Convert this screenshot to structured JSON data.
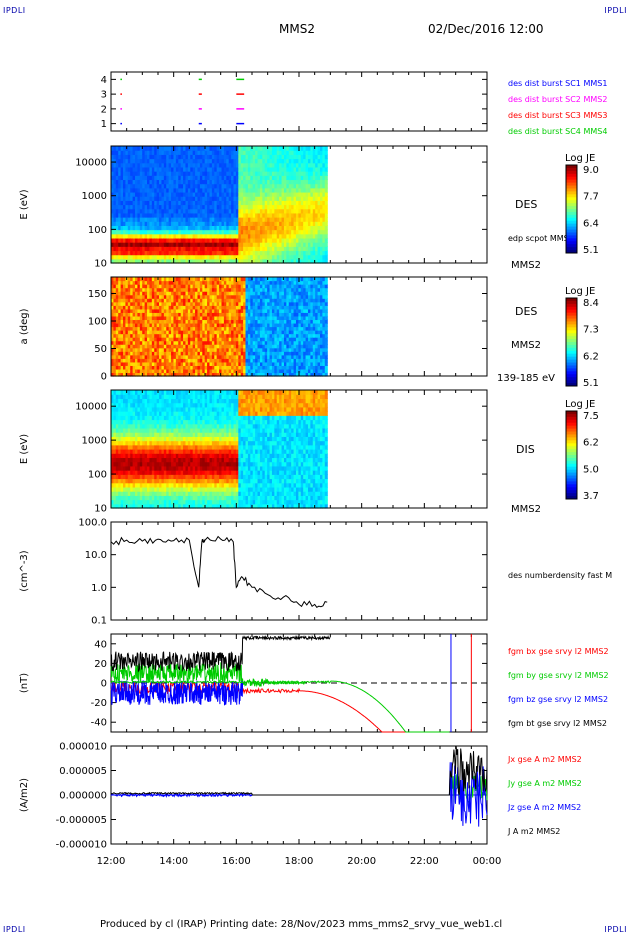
{
  "header": {
    "left_corner": "IPDLI",
    "right_corner": "IPDLI",
    "title": "MMS2",
    "date": "02/Dec/2016 12:00"
  },
  "footer": {
    "produced": "Produced by cl (IRAP)   Printing date: 28/Nov/2023   mms_mms2_srvy_vue_web1.cl",
    "left_corner": "IPDLI",
    "right_corner": "IPDLI"
  },
  "chart_data": [
    {
      "type": "scatter",
      "panel": "burst-availability",
      "ylim": [
        0.5,
        4.5
      ],
      "yticks": [
        "1",
        "2",
        "3",
        "4"
      ],
      "series": [
        {
          "name": "des dist burst SC1 MMS1",
          "color": "#0000ff",
          "level": 1
        },
        {
          "name": "des dist burst SC2 MMS2",
          "color": "#ff00ff",
          "level": 2
        },
        {
          "name": "des dist burst SC3 MMS3",
          "color": "#ff0000",
          "level": 3
        },
        {
          "name": "des dist burst SC4 MMS4",
          "color": "#00cc00",
          "level": 4
        }
      ],
      "bursts_hours": [
        [
          12.3,
          12.35
        ],
        [
          14.8,
          14.9
        ],
        [
          16.0,
          16.25
        ]
      ]
    },
    {
      "type": "heatmap",
      "panel": "des-energy",
      "ylabel": "E (eV)",
      "yscale": "log",
      "ylim": [
        10,
        30000
      ],
      "yticks": [
        "10",
        "100",
        "1000",
        "10000"
      ],
      "right_label": "DES",
      "right_sub": "edp scpot MMS2",
      "spacecraft": "MMS2",
      "colorbar": {
        "title": "Log JE",
        "ticks": [
          "9.0",
          "7.7",
          "6.4",
          "5.1"
        ]
      }
    },
    {
      "type": "heatmap",
      "panel": "des-pitch",
      "ylabel": "a (deg)",
      "ylim": [
        0,
        180
      ],
      "yticks": [
        "0",
        "50",
        "100",
        "150"
      ],
      "right_label": "DES",
      "spacecraft": "MMS2",
      "energy_range": "139-185 eV",
      "colorbar": {
        "title": "Log JE",
        "ticks": [
          "8.4",
          "7.3",
          "6.2",
          "5.1"
        ]
      }
    },
    {
      "type": "heatmap",
      "panel": "dis-energy",
      "ylabel": "E (eV)",
      "yscale": "log",
      "ylim": [
        10,
        30000
      ],
      "yticks": [
        "10",
        "100",
        "1000",
        "10000"
      ],
      "right_label": "DIS",
      "spacecraft": "MMS2",
      "colorbar": {
        "title": "Log JE",
        "ticks": [
          "7.5",
          "6.2",
          "5.0",
          "3.7"
        ]
      }
    },
    {
      "type": "line",
      "panel": "density",
      "ylabel": "(cm^-3)",
      "yscale": "log",
      "ylim": [
        0.1,
        100
      ],
      "yticks": [
        "0.1",
        "1.0",
        "10.0",
        "100.0"
      ],
      "series": [
        {
          "name": "des numberdensity fast M",
          "color": "#000000"
        }
      ],
      "x_hours": [
        12.0,
        12.5,
        13.0,
        13.5,
        14.0,
        14.5,
        14.8,
        14.9,
        15.0,
        15.5,
        15.9,
        16.0,
        16.2,
        16.5,
        17.0,
        17.5,
        18.0,
        18.5,
        18.9
      ],
      "values": [
        25,
        28,
        26,
        30,
        27,
        28,
        1.0,
        25,
        28,
        30,
        25,
        1.0,
        2.0,
        1.0,
        0.6,
        0.5,
        0.3,
        0.3,
        0.35
      ]
    },
    {
      "type": "line",
      "panel": "magnetic-field",
      "ylabel": "(nT)",
      "ylim": [
        -50,
        50
      ],
      "yticks": [
        "-40",
        "-20",
        "0",
        "20",
        "40"
      ],
      "series": [
        {
          "name": "fgm bx gse srvy l2 MMS2",
          "color": "#ff0000"
        },
        {
          "name": "fgm by gse srvy l2 MMS2",
          "color": "#00cc00"
        },
        {
          "name": "fgm bz gse srvy l2 MMS2",
          "color": "#0000ff"
        },
        {
          "name": "fgm bt gse srvy l2 MMS2",
          "color": "#000000"
        }
      ]
    },
    {
      "type": "line",
      "panel": "current-density",
      "ylabel": "(A/m2)",
      "ylim": [
        -1e-05,
        1e-05
      ],
      "yticks": [
        "-0.000010",
        "-0.000005",
        "0.000000",
        "0.000005",
        "0.000010"
      ],
      "series": [
        {
          "name": "Jx gse A m2 MMS2",
          "color": "#ff0000"
        },
        {
          "name": "Jy gse A m2 MMS2",
          "color": "#00cc00"
        },
        {
          "name": "Jz gse A m2 MMS2",
          "color": "#0000ff"
        },
        {
          "name": "J A m2 MMS2",
          "color": "#000000"
        }
      ]
    }
  ],
  "xaxis": {
    "range_hours": [
      12,
      24
    ],
    "ticks": [
      "12:00",
      "14:00",
      "16:00",
      "18:00",
      "20:00",
      "22:00",
      "00:00"
    ]
  }
}
